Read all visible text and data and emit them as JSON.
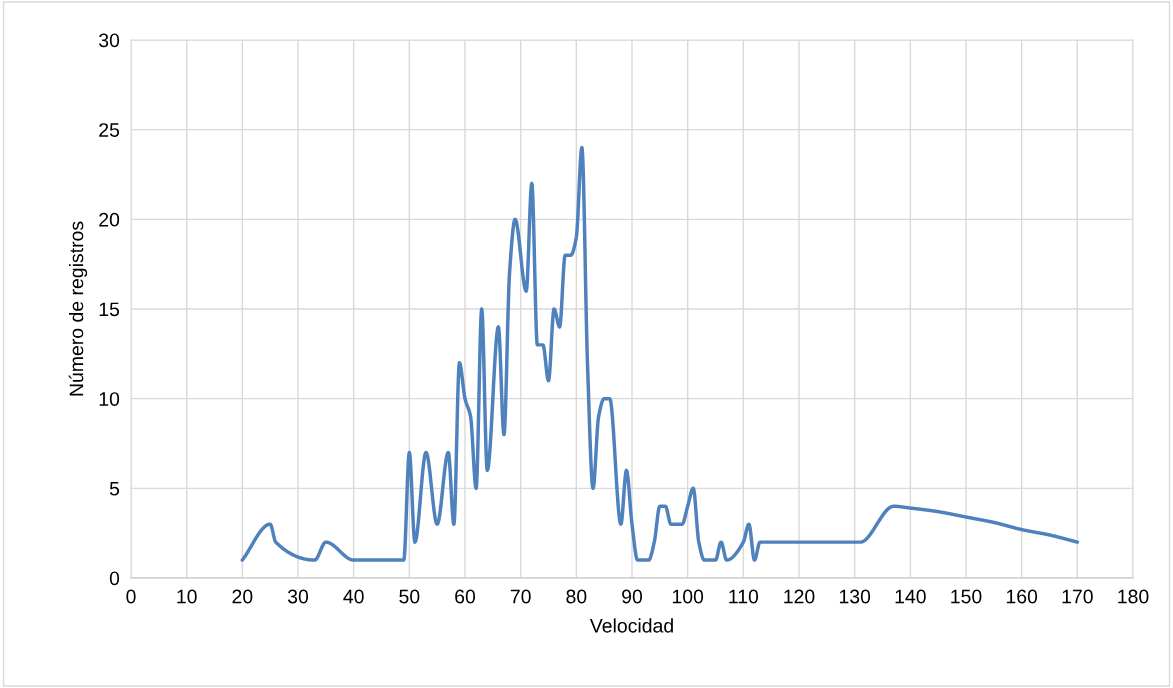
{
  "chart_data": {
    "type": "line",
    "xlabel": "Velocidad",
    "ylabel": "Número de registros",
    "x": [
      20,
      25,
      26,
      33,
      35,
      40,
      42,
      48,
      49,
      50,
      51,
      53,
      55,
      57,
      58,
      59,
      60,
      61,
      62,
      63,
      64,
      66,
      67,
      68,
      69,
      71,
      72,
      73,
      74,
      75,
      76,
      77,
      78,
      79,
      80,
      81,
      82,
      83,
      84,
      85,
      86,
      88,
      89,
      90,
      91,
      93,
      94,
      95,
      96,
      97,
      98,
      99,
      100,
      101,
      102,
      103,
      105,
      106,
      107,
      110,
      111,
      112,
      113,
      120,
      131,
      137,
      140,
      145,
      150,
      155,
      160,
      165,
      170
    ],
    "series": [
      {
        "color": "#4f81bd",
        "values": [
          1,
          3,
          2,
          1,
          2,
          1,
          1,
          1,
          1,
          7,
          2,
          7,
          3,
          7,
          3,
          12,
          10,
          9,
          5,
          15,
          6,
          14,
          8,
          17,
          20,
          16,
          22,
          13,
          13,
          11,
          15,
          14,
          18,
          18,
          19,
          24,
          12,
          5,
          9,
          10,
          10,
          3,
          6,
          3,
          1,
          1,
          2,
          4,
          4,
          3,
          3,
          3,
          4,
          5,
          2,
          1,
          1,
          2,
          1,
          2,
          3,
          1,
          2,
          2,
          2,
          4,
          3.9,
          3.7,
          3.4,
          3.1,
          2.7,
          2.4,
          2
        ]
      }
    ],
    "xlim": [
      0,
      180
    ],
    "xticks": [
      0,
      10,
      20,
      30,
      40,
      50,
      60,
      70,
      80,
      90,
      100,
      110,
      120,
      130,
      140,
      150,
      160,
      170,
      180
    ],
    "ylim": [
      0,
      30
    ],
    "yticks": [
      0,
      5,
      10,
      15,
      20,
      25,
      30
    ],
    "grid": true,
    "marker": "none",
    "line_style": "solid"
  }
}
